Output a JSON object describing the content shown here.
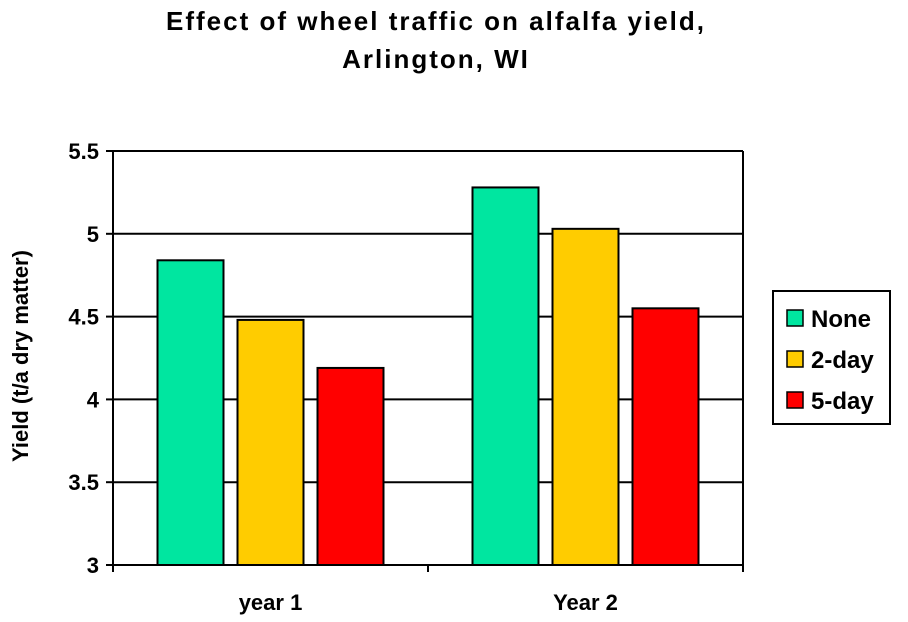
{
  "colors": {
    "None": "#00e6a0",
    "2-day": "#ffcc00",
    "5-day": "#ff0000",
    "gridline": "#000000",
    "bar_outline": "#000000"
  },
  "chart_data": {
    "type": "bar",
    "title": "Effect of wheel traffic on alfalfa yield,",
    "subtitle": "Arlington, WI",
    "xlabel": "",
    "ylabel": "Yield (t/a dry matter)",
    "categories": [
      "year 1",
      "Year 2"
    ],
    "series": [
      {
        "name": "None",
        "values": [
          4.84,
          5.28
        ]
      },
      {
        "name": "2-day",
        "values": [
          4.48,
          5.03
        ]
      },
      {
        "name": "5-day",
        "values": [
          4.19,
          4.55
        ]
      }
    ],
    "ylim": [
      3,
      5.5
    ],
    "yticks": [
      "3",
      "3.5",
      "4",
      "4.5",
      "5",
      "5.5"
    ],
    "grid": true,
    "legend": "right"
  }
}
